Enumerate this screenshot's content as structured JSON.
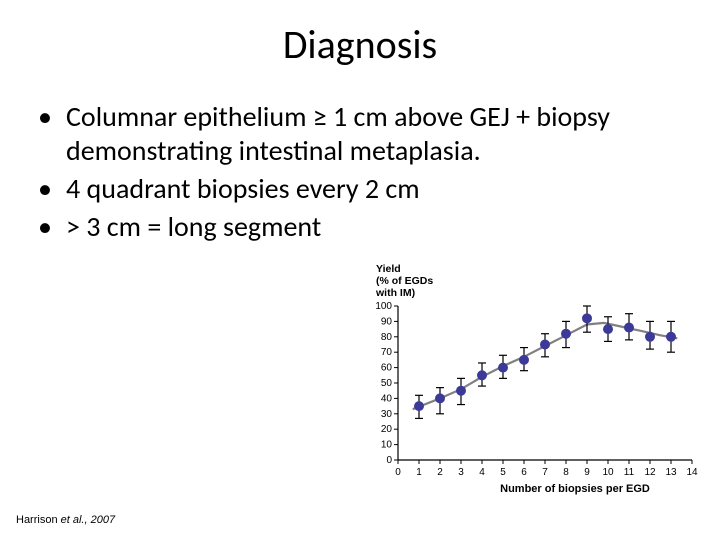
{
  "title": "Diagnosis",
  "bullets": [
    "Columnar epithelium ≥ 1 cm above GEJ + biopsy demonstrating intestinal metaplasia.",
    "4 quadrant biopsies every 2 cm",
    "> 3 cm = long segment"
  ],
  "citation": {
    "author": "Harrison",
    "rest": " et al., 2007"
  },
  "chart": {
    "type": "line-scatter-errorbar",
    "y_axis_title_lines": [
      "Yield",
      "(% of EGDs",
      "with IM)"
    ],
    "x_axis_title": "Number of biopsies per EGD",
    "x_ticks": [
      0,
      1,
      2,
      3,
      4,
      5,
      6,
      7,
      8,
      9,
      10,
      11,
      12,
      13,
      14
    ],
    "y_ticks": [
      0,
      10,
      20,
      30,
      40,
      50,
      60,
      70,
      80,
      90,
      100
    ],
    "x_range": [
      0,
      14
    ],
    "y_range": [
      0,
      100
    ],
    "colors": {
      "marker": "#3b3a99",
      "line": "#808080",
      "error": "#000000",
      "axis": "#000000",
      "tick_label": "#000000",
      "title_text": "#000000",
      "background": "#ffffff"
    },
    "marker_radius": 4.5,
    "line_width": 2.2,
    "error_width": 1.2,
    "error_cap": 4,
    "axis_font_size": 10,
    "title_font_size": 10.5,
    "xlabel_font_size": 11,
    "data": [
      {
        "x": 1,
        "y": 35,
        "lo": 27,
        "hi": 42
      },
      {
        "x": 2,
        "y": 40,
        "lo": 30,
        "hi": 47
      },
      {
        "x": 3,
        "y": 45,
        "lo": 36,
        "hi": 53
      },
      {
        "x": 4,
        "y": 55,
        "lo": 48,
        "hi": 63
      },
      {
        "x": 5,
        "y": 60,
        "lo": 53,
        "hi": 68
      },
      {
        "x": 6,
        "y": 65,
        "lo": 58,
        "hi": 73
      },
      {
        "x": 7,
        "y": 75,
        "lo": 67,
        "hi": 82
      },
      {
        "x": 8,
        "y": 82,
        "lo": 73,
        "hi": 90
      },
      {
        "x": 9,
        "y": 92,
        "lo": 83,
        "hi": 100
      },
      {
        "x": 10,
        "y": 85,
        "lo": 77,
        "hi": 93
      },
      {
        "x": 11,
        "y": 86,
        "lo": 78,
        "hi": 95
      },
      {
        "x": 12,
        "y": 80,
        "lo": 72,
        "hi": 90
      },
      {
        "x": 13,
        "y": 80,
        "lo": 70,
        "hi": 90
      }
    ],
    "smooth_curve": [
      {
        "x": 0.7,
        "y": 33
      },
      {
        "x": 2,
        "y": 40
      },
      {
        "x": 3,
        "y": 46
      },
      {
        "x": 4,
        "y": 54
      },
      {
        "x": 5,
        "y": 61
      },
      {
        "x": 6,
        "y": 67
      },
      {
        "x": 7,
        "y": 74
      },
      {
        "x": 8,
        "y": 81
      },
      {
        "x": 9,
        "y": 88
      },
      {
        "x": 9.8,
        "y": 89
      },
      {
        "x": 10.5,
        "y": 87
      },
      {
        "x": 11.5,
        "y": 84
      },
      {
        "x": 12.5,
        "y": 81
      },
      {
        "x": 13.3,
        "y": 79
      }
    ]
  }
}
